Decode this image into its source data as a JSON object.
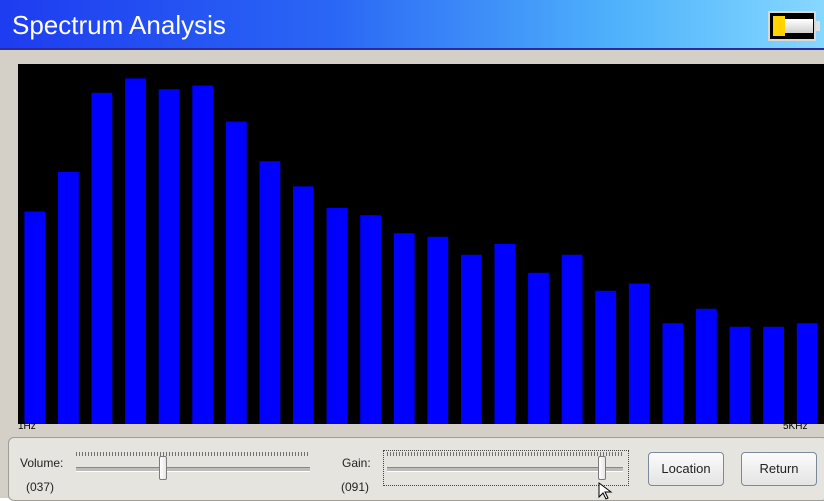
{
  "window": {
    "title": "Spectrum Analysis"
  },
  "battery": {
    "level_fraction": 0.3
  },
  "spectrum": {
    "x_start_label": "1Hz",
    "x_end_label": "5KHz",
    "bar_color": "#0000ff",
    "background_color": "#000000",
    "levels": [
      0.59,
      0.7,
      0.92,
      0.96,
      0.93,
      0.94,
      0.84,
      0.73,
      0.66,
      0.6,
      0.58,
      0.53,
      0.52,
      0.47,
      0.5,
      0.42,
      0.47,
      0.37,
      0.39,
      0.28,
      0.32,
      0.27,
      0.27,
      0.28
    ]
  },
  "controls": {
    "volume": {
      "label": "Volume:",
      "value_text": "(037)",
      "level": 0.37
    },
    "gain": {
      "label": "Gain:",
      "value_text": "(091)",
      "level": 0.91
    },
    "buttons": {
      "location": "Location",
      "return": "Return"
    }
  }
}
